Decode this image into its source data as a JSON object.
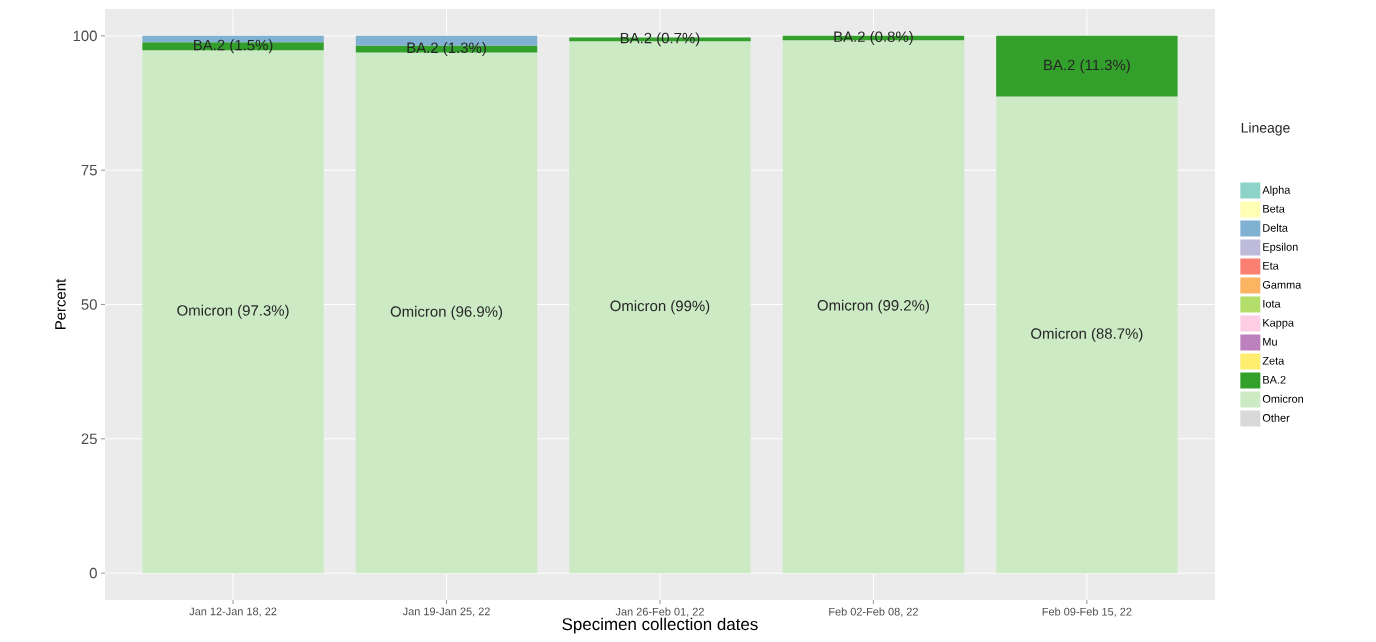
{
  "chart_data": {
    "type": "bar",
    "stacked": true,
    "xlabel": "Specimen collection dates",
    "ylabel": "Percent",
    "legend_title": "Lineage",
    "legend": "right",
    "grid": true,
    "categories": [
      "Jan 12-Jan 18, 22",
      "Jan 19-Jan 25, 22",
      "Jan 26-Feb 01, 22",
      "Feb 02-Feb 08, 22",
      "Feb 09-Feb 15, 22"
    ],
    "ylim": [
      -5,
      105
    ],
    "yticks": [
      0,
      25,
      50,
      75,
      100
    ],
    "series": [
      {
        "name": "Other",
        "color": "#d9d9d9",
        "values": [
          null,
          null,
          null,
          null,
          null
        ]
      },
      {
        "name": "Omicron",
        "color": "#ccebc5",
        "values": [
          97.3,
          96.9,
          99,
          99.2,
          88.7
        ],
        "value_labels": [
          "Omicron (97.3%)",
          "Omicron (96.9%)",
          "Omicron (99%)",
          "Omicron (99.2%)",
          "Omicron (88.7%)"
        ]
      },
      {
        "name": "BA.2",
        "color": "#33a02c",
        "values": [
          1.5,
          1.3,
          0.7,
          0.8,
          11.3
        ],
        "value_labels": [
          "BA.2 (1.5%)",
          "BA.2 (1.3%)",
          "BA.2 (0.7%)",
          "BA.2 (0.8%)",
          "BA.2 (11.3%)"
        ]
      },
      {
        "name": "Zeta",
        "color": "#ffed6f",
        "values": [
          null,
          null,
          null,
          null,
          null
        ]
      },
      {
        "name": "Mu",
        "color": "#bc80bd",
        "values": [
          null,
          null,
          null,
          null,
          null
        ]
      },
      {
        "name": "Kappa",
        "color": "#fccde5",
        "values": [
          null,
          null,
          null,
          null,
          null
        ]
      },
      {
        "name": "Iota",
        "color": "#b3de69",
        "values": [
          null,
          null,
          null,
          null,
          null
        ]
      },
      {
        "name": "Gamma",
        "color": "#fdb462",
        "values": [
          null,
          null,
          null,
          null,
          null
        ]
      },
      {
        "name": "Eta",
        "color": "#fb8072",
        "values": [
          null,
          null,
          null,
          null,
          null
        ]
      },
      {
        "name": "Epsilon",
        "color": "#bebada",
        "values": [
          null,
          null,
          null,
          null,
          null
        ]
      },
      {
        "name": "Delta",
        "color": "#80b1d3",
        "values": [
          1.2,
          1.8,
          null,
          null,
          null
        ]
      },
      {
        "name": "Beta",
        "color": "#ffffb3",
        "values": [
          null,
          null,
          null,
          null,
          null
        ]
      },
      {
        "name": "Alpha",
        "color": "#8dd3c7",
        "values": [
          null,
          null,
          null,
          null,
          null
        ]
      }
    ]
  }
}
